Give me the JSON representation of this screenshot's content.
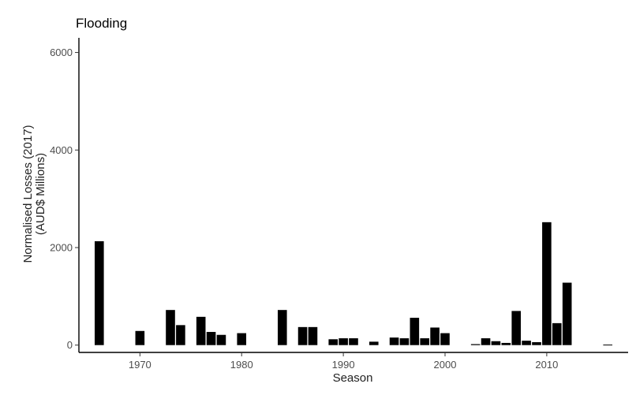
{
  "chart_data": {
    "type": "bar",
    "title": "Flooding",
    "xlabel": "Season",
    "ylabel": [
      "Normalised Losses (2017)",
      "(AUD$ Millions)"
    ],
    "xlim": [
      1964,
      2018
    ],
    "ylim": [
      -150,
      6300
    ],
    "x_ticks": [
      1970,
      1980,
      1990,
      2000,
      2010
    ],
    "y_ticks": [
      0,
      2000,
      4000,
      6000
    ],
    "grid": false,
    "bar_color": "#000000",
    "x": [
      1966,
      1970,
      1973,
      1974,
      1976,
      1977,
      1978,
      1980,
      1984,
      1986,
      1987,
      1989,
      1990,
      1991,
      1993,
      1995,
      1996,
      1997,
      1998,
      1999,
      2000,
      2003,
      2004,
      2005,
      2006,
      2007,
      2008,
      2009,
      2010,
      2011,
      2012,
      2016
    ],
    "values": [
      2130,
      290,
      720,
      410,
      580,
      270,
      210,
      245,
      720,
      370,
      370,
      120,
      140,
      140,
      70,
      155,
      140,
      560,
      140,
      360,
      245,
      20,
      140,
      80,
      45,
      700,
      90,
      60,
      2520,
      450,
      1280,
      10
    ]
  }
}
